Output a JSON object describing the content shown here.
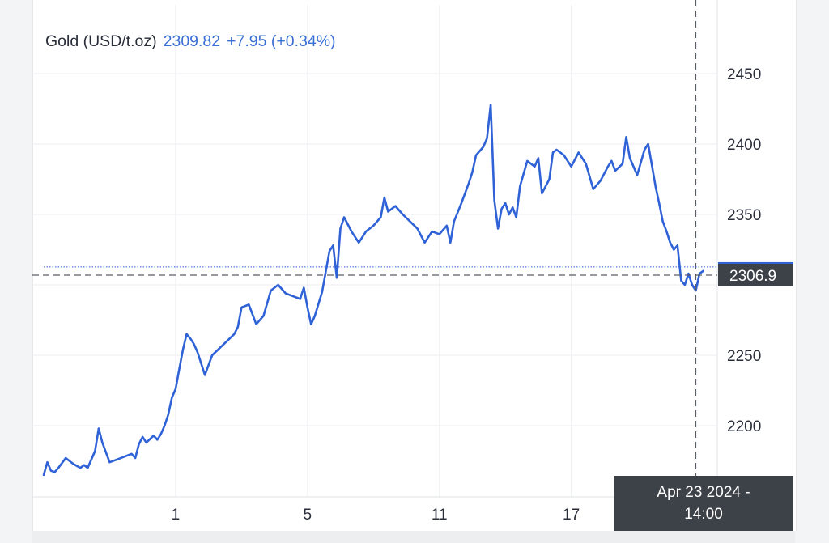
{
  "header": {
    "instrument": "Gold (USD/t.oz)",
    "price": "2309.82",
    "change": "+7.95 (+0.34%)"
  },
  "crosshair": {
    "price_label": "2306.9",
    "date_line1": "Apr 23 2024 -",
    "date_line2": "14:00"
  },
  "colors": {
    "line": "#2f62d6",
    "grid": "#eceef1",
    "crosshair": "#5a5e66",
    "label_bg": "#3d4148",
    "current_marker": "#2f62d6"
  },
  "chart_data": {
    "type": "line",
    "title": "Gold (USD/t.oz)",
    "xlabel": "",
    "ylabel": "",
    "ylim": [
      2160,
      2480
    ],
    "xlim": [
      0,
      92
    ],
    "y_ticks": [
      2200,
      2250,
      2300,
      2350,
      2400,
      2450
    ],
    "y_tick_labels": [
      "2200",
      "2250",
      "",
      "2350",
      "2400",
      "2450"
    ],
    "x_ticks": [
      {
        "x": 18,
        "label": "1"
      },
      {
        "x": 36,
        "label": "5"
      },
      {
        "x": 54,
        "label": "11"
      },
      {
        "x": 72,
        "label": "17"
      }
    ],
    "grid": true,
    "last_price": 2309.82,
    "crosshair_value": 2306.9,
    "crosshair_x": 89,
    "series": [
      {
        "values": [
          [
            0,
            2165
          ],
          [
            0.5,
            2174
          ],
          [
            1,
            2168
          ],
          [
            1.5,
            2167
          ],
          [
            2,
            2170
          ],
          [
            3,
            2177
          ],
          [
            4,
            2173
          ],
          [
            5,
            2170
          ],
          [
            5.5,
            2172
          ],
          [
            6,
            2170
          ],
          [
            7,
            2182
          ],
          [
            7.5,
            2198
          ],
          [
            8,
            2188
          ],
          [
            9,
            2174
          ],
          [
            10,
            2176
          ],
          [
            11,
            2178
          ],
          [
            12,
            2180
          ],
          [
            12.5,
            2177
          ],
          [
            13,
            2187
          ],
          [
            13.5,
            2192
          ],
          [
            14,
            2188
          ],
          [
            15,
            2193
          ],
          [
            15.5,
            2190
          ],
          [
            16,
            2194
          ],
          [
            16.5,
            2200
          ],
          [
            17,
            2208
          ],
          [
            17.5,
            2220
          ],
          [
            18,
            2226
          ],
          [
            18.5,
            2240
          ],
          [
            19,
            2254
          ],
          [
            19.5,
            2265
          ],
          [
            20,
            2262
          ],
          [
            20.5,
            2258
          ],
          [
            21,
            2252
          ],
          [
            22,
            2236
          ],
          [
            23,
            2250
          ],
          [
            24,
            2255
          ],
          [
            25,
            2260
          ],
          [
            26,
            2265
          ],
          [
            26.5,
            2270
          ],
          [
            27,
            2284
          ],
          [
            28,
            2286
          ],
          [
            29,
            2272
          ],
          [
            30,
            2278
          ],
          [
            31,
            2296
          ],
          [
            32,
            2300
          ],
          [
            33,
            2294
          ],
          [
            34,
            2292
          ],
          [
            35,
            2290
          ],
          [
            35.5,
            2298
          ],
          [
            36,
            2284
          ],
          [
            36.5,
            2272
          ],
          [
            37,
            2278
          ],
          [
            38,
            2295
          ],
          [
            39,
            2324
          ],
          [
            39.5,
            2328
          ],
          [
            40,
            2305
          ],
          [
            40.5,
            2340
          ],
          [
            41,
            2348
          ],
          [
            42,
            2338
          ],
          [
            43,
            2330
          ],
          [
            44,
            2338
          ],
          [
            45,
            2342
          ],
          [
            46,
            2348
          ],
          [
            46.5,
            2362
          ],
          [
            47,
            2352
          ],
          [
            48,
            2356
          ],
          [
            49,
            2350
          ],
          [
            50,
            2345
          ],
          [
            51,
            2340
          ],
          [
            52,
            2330
          ],
          [
            53,
            2338
          ],
          [
            54,
            2336
          ],
          [
            55,
            2342
          ],
          [
            55.5,
            2330
          ],
          [
            56,
            2345
          ],
          [
            57,
            2358
          ],
          [
            58,
            2372
          ],
          [
            58.5,
            2380
          ],
          [
            59,
            2392
          ],
          [
            60,
            2398
          ],
          [
            60.5,
            2404
          ],
          [
            61,
            2428
          ],
          [
            61.5,
            2360
          ],
          [
            62,
            2340
          ],
          [
            62.5,
            2354
          ],
          [
            63,
            2358
          ],
          [
            63.5,
            2350
          ],
          [
            64,
            2355
          ],
          [
            64.5,
            2348
          ],
          [
            65,
            2370
          ],
          [
            66,
            2388
          ],
          [
            67,
            2384
          ],
          [
            67.5,
            2390
          ],
          [
            68,
            2365
          ],
          [
            69,
            2375
          ],
          [
            69.5,
            2394
          ],
          [
            70,
            2396
          ],
          [
            71,
            2392
          ],
          [
            72,
            2384
          ],
          [
            73,
            2394
          ],
          [
            74,
            2386
          ],
          [
            75,
            2368
          ],
          [
            76,
            2374
          ],
          [
            77,
            2384
          ],
          [
            77.5,
            2388
          ],
          [
            78,
            2381
          ],
          [
            79,
            2386
          ],
          [
            79.5,
            2405
          ],
          [
            80,
            2390
          ],
          [
            80.5,
            2384
          ],
          [
            81,
            2378
          ],
          [
            82,
            2396
          ],
          [
            82.5,
            2400
          ],
          [
            83,
            2385
          ],
          [
            83.5,
            2370
          ],
          [
            84,
            2358
          ],
          [
            84.5,
            2345
          ],
          [
            85,
            2338
          ],
          [
            85.5,
            2330
          ],
          [
            86,
            2325
          ],
          [
            86.5,
            2328
          ],
          [
            87,
            2303
          ],
          [
            87.5,
            2300
          ],
          [
            88,
            2308
          ],
          [
            88.5,
            2300
          ],
          [
            89,
            2296
          ],
          [
            89.5,
            2308
          ],
          [
            90,
            2309.82
          ]
        ]
      }
    ]
  }
}
